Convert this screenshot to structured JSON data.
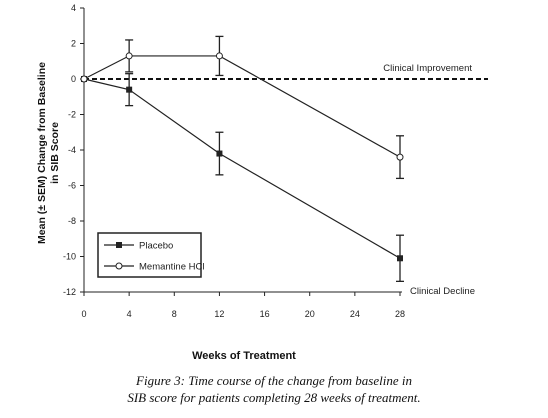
{
  "chart_data": {
    "type": "line",
    "title": "",
    "xlabel": "Weeks of Treatment",
    "ylabel": [
      "Mean (± SEM) Change from Baseline",
      "in SIB Score"
    ],
    "xlim": [
      0,
      28
    ],
    "ylim": [
      -12,
      4
    ],
    "x_ticks": [
      0,
      4,
      8,
      12,
      16,
      20,
      24,
      28
    ],
    "y_ticks": [
      4,
      2,
      0,
      -2,
      -4,
      -6,
      -8,
      -10,
      -12
    ],
    "x": [
      0,
      4,
      12,
      28
    ],
    "series": [
      {
        "name": "Placebo",
        "marker": "filled-square",
        "values": [
          0,
          -0.6,
          -4.2,
          -10.1
        ],
        "sem": [
          0,
          0.9,
          1.2,
          1.3
        ]
      },
      {
        "name": "Memantine HCl",
        "marker": "open-circle",
        "values": [
          0,
          1.3,
          1.3,
          -4.4
        ],
        "sem": [
          0,
          0.9,
          1.1,
          1.2
        ]
      }
    ],
    "reference_line": {
      "y": 0,
      "style": "dashed"
    },
    "annotations": [
      "Clinical Improvement",
      "Clinical Decline"
    ],
    "legend_position": "lower-left",
    "grid": false
  },
  "caption": {
    "line1": "Figure 3: Time course of the change from baseline in",
    "line2": "SIB score for patients completing 28 weeks of treatment."
  }
}
